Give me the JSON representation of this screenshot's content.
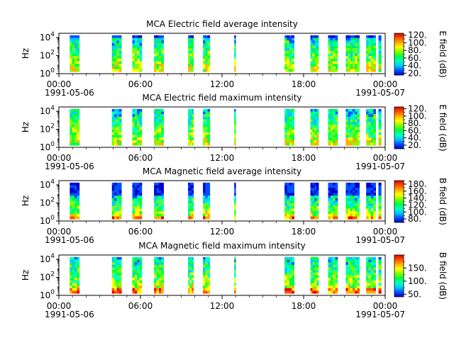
{
  "figure": {
    "time_ticks": [
      "00:00",
      "06:00",
      "12:00",
      "18:00",
      "00:00"
    ],
    "date_start": "1991-05-06",
    "date_end": "1991-05-07"
  },
  "colors": {
    "colormap": [
      "#0000c8",
      "#0050ff",
      "#00c8ff",
      "#00ffc0",
      "#00ff40",
      "#80ff00",
      "#ffff00",
      "#ffb000",
      "#ff5000",
      "#e00000"
    ]
  },
  "chart_data": [
    {
      "type": "heatmap",
      "title": "MCA  Electric field average intensity",
      "ylabel": "Hz",
      "colorbar_label": "E field (dB)",
      "x_range": [
        "1991-05-06T00:00",
        "1991-05-07T00:00"
      ],
      "y_range_hz": [
        1,
        30000
      ],
      "y_scale": "log",
      "y_ticks": [
        {
          "base": "10",
          "exp": "0",
          "value": 1
        },
        {
          "base": "10",
          "exp": "2",
          "value": 100
        },
        {
          "base": "10",
          "exp": "4",
          "value": 10000
        }
      ],
      "c_range": [
        15,
        125
      ],
      "c_ticks": [
        "20.",
        "40.",
        "60.",
        "80.",
        "100.",
        "120."
      ],
      "c_tick_values": [
        20,
        40,
        60,
        80,
        100,
        120
      ],
      "data_intervals_hours": [
        [
          0.8,
          1.5
        ],
        [
          3.9,
          4.6
        ],
        [
          5.4,
          6.1
        ],
        [
          7.0,
          7.7
        ],
        [
          9.5,
          9.9
        ],
        [
          10.6,
          11.1
        ],
        [
          12.9,
          13.0
        ],
        [
          16.6,
          17.3
        ],
        [
          18.5,
          19.1
        ],
        [
          19.8,
          20.5
        ],
        [
          21.1,
          22.1
        ],
        [
          22.6,
          23.3
        ],
        [
          23.5,
          23.7
        ]
      ],
      "top_blue_fraction": 0.05
    },
    {
      "type": "heatmap",
      "title": "MCA  Electric field maximum intensity",
      "ylabel": "Hz",
      "colorbar_label": "E field (dB)",
      "x_range": [
        "1991-05-06T00:00",
        "1991-05-07T00:00"
      ],
      "y_range_hz": [
        1,
        30000
      ],
      "y_scale": "log",
      "y_ticks": [
        {
          "base": "10",
          "exp": "0",
          "value": 1
        },
        {
          "base": "10",
          "exp": "2",
          "value": 100
        },
        {
          "base": "10",
          "exp": "4",
          "value": 10000
        }
      ],
      "c_range": [
        10,
        125
      ],
      "c_ticks": [
        "20.",
        "40.",
        "60.",
        "80.",
        "100.",
        "120."
      ],
      "c_tick_values": [
        20,
        40,
        60,
        80,
        100,
        120
      ],
      "data_intervals_hours": [
        [
          0.8,
          1.5
        ],
        [
          3.9,
          4.6
        ],
        [
          5.4,
          6.1
        ],
        [
          7.0,
          7.7
        ],
        [
          9.5,
          9.9
        ],
        [
          10.6,
          11.1
        ],
        [
          12.9,
          13.0
        ],
        [
          16.6,
          17.3
        ],
        [
          18.5,
          19.1
        ],
        [
          19.8,
          20.5
        ],
        [
          21.1,
          22.1
        ],
        [
          22.6,
          23.3
        ],
        [
          23.5,
          23.7
        ]
      ],
      "top_blue_fraction": 0.0
    },
    {
      "type": "heatmap",
      "title": "MCA  Magnetic field average intensity",
      "ylabel": "Hz",
      "colorbar_label": "B field (dB)",
      "x_range": [
        "1991-05-06T00:00",
        "1991-05-07T00:00"
      ],
      "y_range_hz": [
        1,
        30000
      ],
      "y_scale": "log",
      "y_ticks": [
        {
          "base": "10",
          "exp": "0",
          "value": 1
        },
        {
          "base": "10",
          "exp": "2",
          "value": 100
        },
        {
          "base": "10",
          "exp": "4",
          "value": 10000
        }
      ],
      "c_range": [
        70,
        190
      ],
      "c_ticks": [
        "80.",
        "100.",
        "120.",
        "140.",
        "160.",
        "180."
      ],
      "c_tick_values": [
        80,
        100,
        120,
        140,
        160,
        180
      ],
      "data_intervals_hours": [
        [
          0.8,
          1.5
        ],
        [
          3.9,
          4.6
        ],
        [
          5.4,
          6.1
        ],
        [
          7.0,
          7.7
        ],
        [
          9.5,
          9.9
        ],
        [
          10.6,
          11.1
        ],
        [
          12.9,
          13.0
        ],
        [
          16.6,
          17.3
        ],
        [
          18.5,
          19.1
        ],
        [
          19.8,
          20.5
        ],
        [
          21.1,
          22.1
        ],
        [
          22.6,
          23.3
        ],
        [
          23.5,
          23.7
        ]
      ],
      "top_blue_fraction": 0.3
    },
    {
      "type": "heatmap",
      "title": "MCA  Magnetic field maximum intensity",
      "ylabel": "Hz",
      "colorbar_label": "B field (dB)",
      "x_range": [
        "1991-05-06T00:00",
        "1991-05-07T00:00"
      ],
      "y_range_hz": [
        1,
        30000
      ],
      "y_scale": "log",
      "y_ticks": [
        {
          "base": "10",
          "exp": "0",
          "value": 1
        },
        {
          "base": "10",
          "exp": "2",
          "value": 100
        },
        {
          "base": "10",
          "exp": "4",
          "value": 10000
        }
      ],
      "c_range": [
        40,
        200
      ],
      "c_ticks": [
        "50.",
        "100.",
        "150."
      ],
      "c_tick_values": [
        50,
        100,
        150
      ],
      "data_intervals_hours": [
        [
          0.8,
          1.5
        ],
        [
          3.9,
          4.6
        ],
        [
          5.4,
          6.1
        ],
        [
          7.0,
          7.7
        ],
        [
          9.5,
          9.9
        ],
        [
          10.6,
          11.1
        ],
        [
          12.9,
          13.0
        ],
        [
          16.6,
          17.3
        ],
        [
          18.5,
          19.1
        ],
        [
          19.8,
          20.5
        ],
        [
          21.1,
          22.1
        ],
        [
          22.6,
          23.3
        ],
        [
          23.5,
          23.7
        ]
      ],
      "top_blue_fraction": 0.0
    }
  ]
}
